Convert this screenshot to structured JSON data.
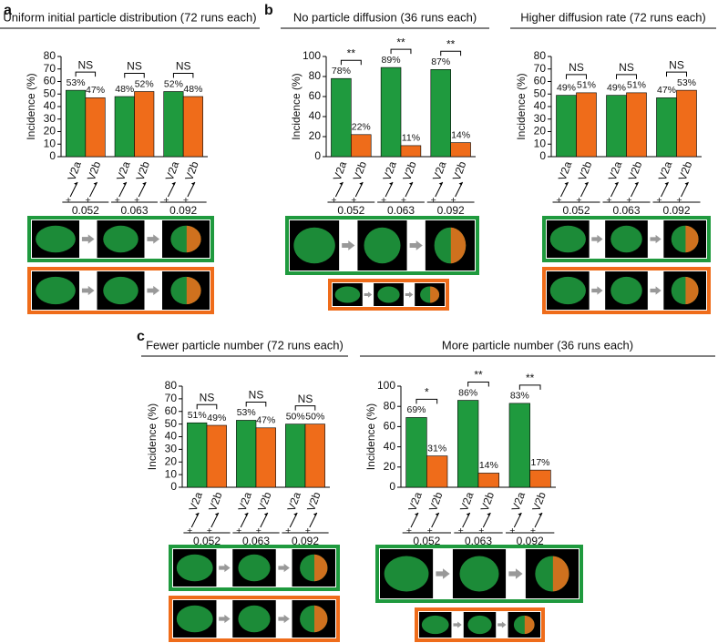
{
  "panel_labels": [
    "a",
    "b",
    "c"
  ],
  "chart_data": [
    {
      "type": "bar",
      "title": "Uniform initial particle distribution (72 runs each)",
      "y_label": "Incidence (%)",
      "categories": [
        "0.052",
        "0.063",
        "0.092"
      ],
      "series": [
        {
          "name": "V2a",
          "color": "#1f9a3e",
          "values": [
            53,
            48,
            52
          ],
          "value_labels": [
            "53%",
            "48%",
            "52%"
          ]
        },
        {
          "name": "V2b",
          "color": "#ef6c1a",
          "values": [
            47,
            52,
            48
          ],
          "value_labels": [
            "47%",
            "52%",
            "48%"
          ]
        }
      ],
      "significance": [
        "NS",
        "NS",
        "NS"
      ],
      "ylim": [
        0,
        80
      ],
      "yticks": [
        0,
        10,
        20,
        30,
        40,
        50,
        60,
        70,
        80
      ]
    },
    {
      "type": "bar",
      "title": "No particle diffusion (36 runs each)",
      "y_label": "Incidence (%)",
      "categories": [
        "0.052",
        "0.063",
        "0.092"
      ],
      "series": [
        {
          "name": "V2a",
          "color": "#1f9a3e",
          "values": [
            78,
            89,
            87
          ],
          "value_labels": [
            "78%",
            "89%",
            "87%"
          ]
        },
        {
          "name": "V2b",
          "color": "#ef6c1a",
          "values": [
            22,
            11,
            14
          ],
          "value_labels": [
            "22%",
            "11%",
            "14%"
          ]
        }
      ],
      "significance": [
        "**",
        "**",
        "**"
      ],
      "ylim": [
        0,
        100
      ],
      "yticks": [
        0,
        20,
        40,
        60,
        80,
        100
      ]
    },
    {
      "type": "bar",
      "title": "Higher diffusion rate (72 runs each)",
      "y_label": "Incidence (%)",
      "categories": [
        "0.052",
        "0.063",
        "0.092"
      ],
      "series": [
        {
          "name": "V2a",
          "color": "#1f9a3e",
          "values": [
            49,
            49,
            47
          ],
          "value_labels": [
            "49%",
            "49%",
            "47%"
          ]
        },
        {
          "name": "V2b",
          "color": "#ef6c1a",
          "values": [
            51,
            51,
            53
          ],
          "value_labels": [
            "51%",
            "51%",
            "53%"
          ]
        }
      ],
      "significance": [
        "NS",
        "NS",
        "NS"
      ],
      "ylim": [
        0,
        80
      ],
      "yticks": [
        0,
        10,
        20,
        30,
        40,
        50,
        60,
        70,
        80
      ]
    },
    {
      "type": "bar",
      "title": "Fewer particle number (72 runs each)",
      "y_label": "Incidence (%)",
      "categories": [
        "0.052",
        "0.063",
        "0.092"
      ],
      "series": [
        {
          "name": "V2a",
          "color": "#1f9a3e",
          "values": [
            51,
            53,
            50
          ],
          "value_labels": [
            "51%",
            "53%",
            "50%"
          ]
        },
        {
          "name": "V2b",
          "color": "#ef6c1a",
          "values": [
            49,
            47,
            50
          ],
          "value_labels": [
            "49%",
            "47%",
            "50%"
          ]
        }
      ],
      "significance": [
        "NS",
        "NS",
        "NS"
      ],
      "ylim": [
        0,
        80
      ],
      "yticks": [
        0,
        10,
        20,
        30,
        40,
        50,
        60,
        70,
        80
      ]
    },
    {
      "type": "bar",
      "title": "More particle number (36 runs each)",
      "y_label": "Incidence (%)",
      "categories": [
        "0.052",
        "0.063",
        "0.092"
      ],
      "series": [
        {
          "name": "V2a",
          "color": "#1f9a3e",
          "values": [
            69,
            86,
            83
          ],
          "value_labels": [
            "69%",
            "86%",
            "83%"
          ]
        },
        {
          "name": "V2b",
          "color": "#ef6c1a",
          "values": [
            31,
            14,
            17
          ],
          "value_labels": [
            "31%",
            "14%",
            "17%"
          ]
        }
      ],
      "significance": [
        "*",
        "**",
        "**"
      ],
      "ylim": [
        0,
        100
      ],
      "yticks": [
        0,
        20,
        40,
        60,
        80,
        100
      ]
    }
  ]
}
